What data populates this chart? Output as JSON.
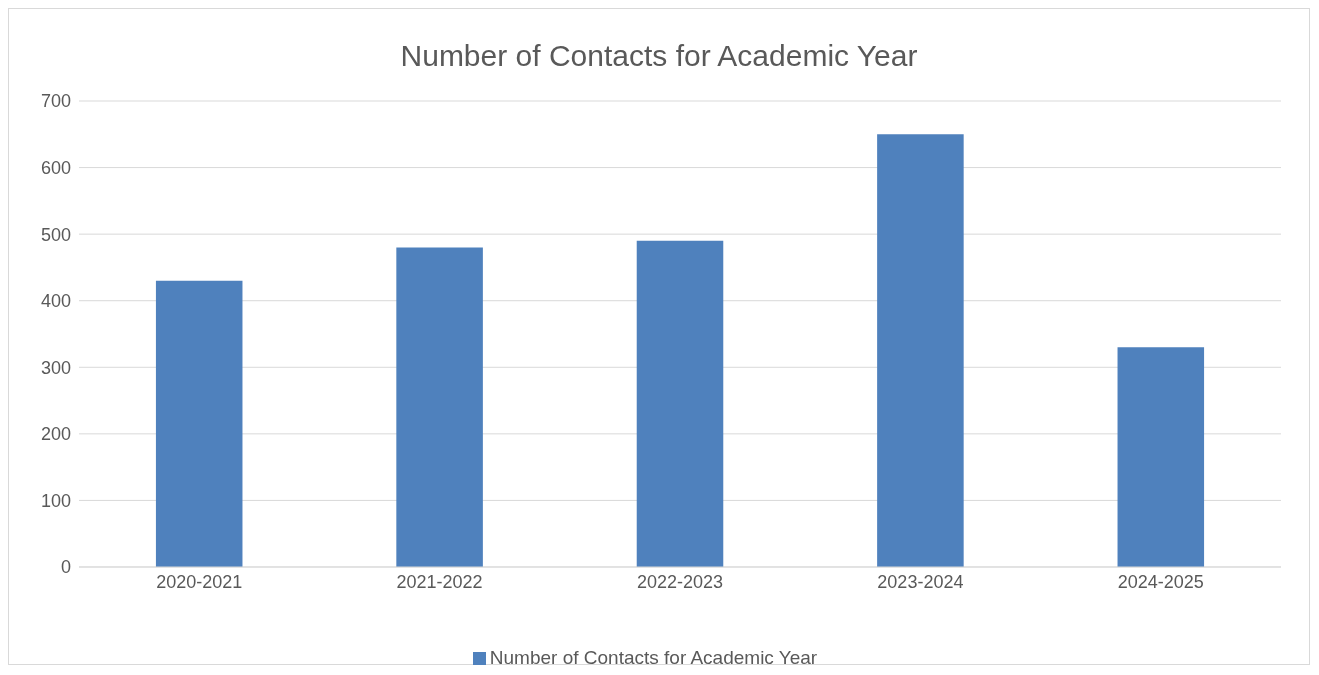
{
  "chart_data": {
    "type": "bar",
    "title": "Number of Contacts for Academic Year",
    "categories": [
      "2020-2021",
      "2021-2022",
      "2022-2023",
      "2023-2024",
      "2024-2025"
    ],
    "series": [
      {
        "name": "Number of Contacts for Academic Year",
        "color": "#4f81bd",
        "values": [
          430,
          480,
          490,
          650,
          330
        ]
      }
    ],
    "ylim": [
      0,
      700
    ],
    "yticks": [
      0,
      100,
      200,
      300,
      400,
      500,
      600,
      700
    ],
    "grid": "y",
    "legend": "bottom"
  }
}
